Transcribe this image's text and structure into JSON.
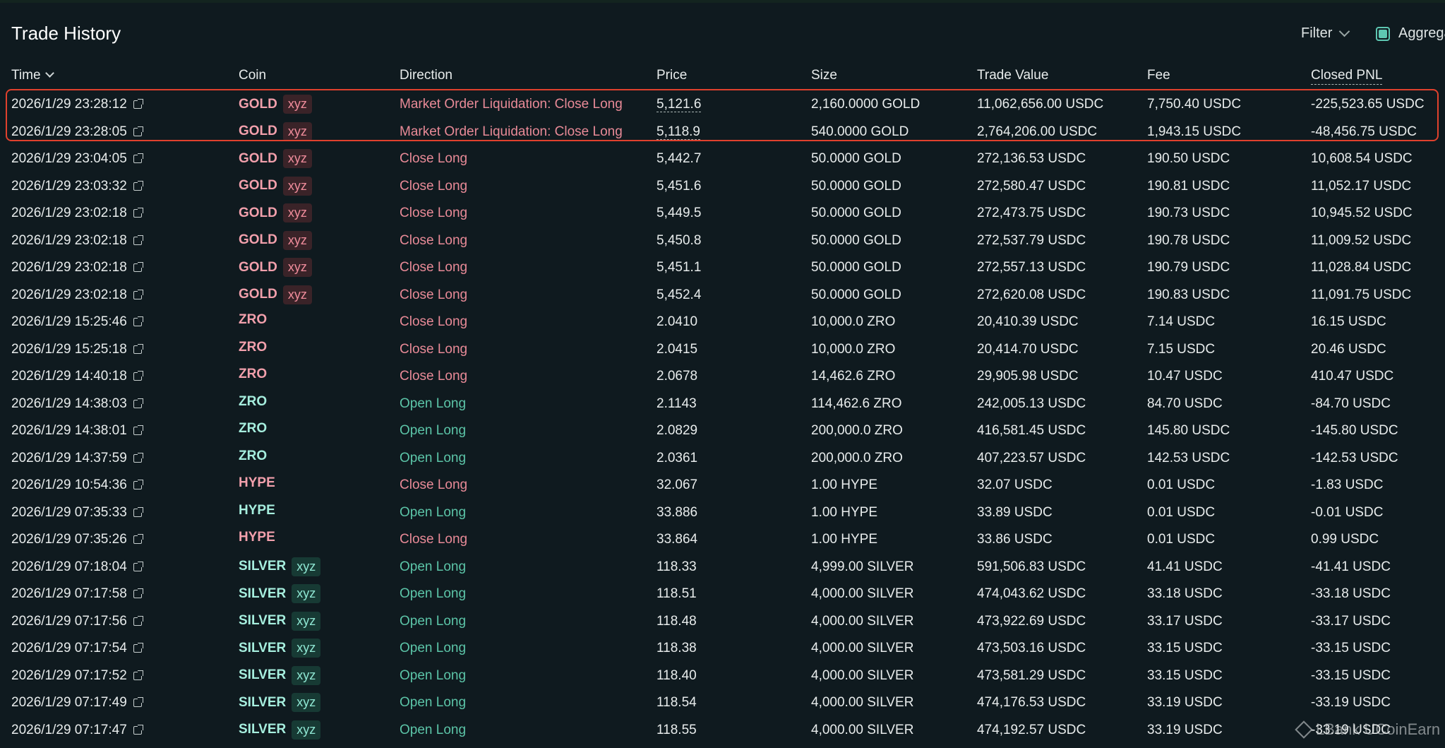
{
  "title": "Trade History",
  "filter_label": "Filter",
  "aggregate_label": "Aggregate",
  "columns": {
    "time": "Time",
    "coin": "Coin",
    "direction": "Direction",
    "price": "Price",
    "size": "Size",
    "trade_value": "Trade Value",
    "fee": "Fee",
    "closed_pnl": "Closed PNL"
  },
  "watermark": "LBank UCoinEarn",
  "colors": {
    "background": "#0f1a1f",
    "close_red": "#e88a97",
    "open_green": "#5cc5a8",
    "highlight_border": "#e0412d"
  },
  "rows": [
    {
      "time": "2026/1/29 23:28:12",
      "coin": "GOLD",
      "tag": "xyz",
      "coin_color": "red",
      "direction": "Market Order Liquidation: Close Long",
      "dir_color": "red",
      "price": "5,121.6",
      "size": "2,160.0000 GOLD",
      "trade_value": "11,062,656.00 USDC",
      "fee": "7,750.40 USDC",
      "closed_pnl": "-225,523.65 USDC"
    },
    {
      "time": "2026/1/29 23:28:05",
      "coin": "GOLD",
      "tag": "xyz",
      "coin_color": "red",
      "direction": "Market Order Liquidation: Close Long",
      "dir_color": "red",
      "price": "5,118.9",
      "size": "540.0000 GOLD",
      "trade_value": "2,764,206.00 USDC",
      "fee": "1,943.15 USDC",
      "closed_pnl": "-48,456.75 USDC"
    },
    {
      "time": "2026/1/29 23:04:05",
      "coin": "GOLD",
      "tag": "xyz",
      "coin_color": "red",
      "direction": "Close Long",
      "dir_color": "red",
      "price": "5,442.7",
      "size": "50.0000 GOLD",
      "trade_value": "272,136.53 USDC",
      "fee": "190.50 USDC",
      "closed_pnl": "10,608.54 USDC"
    },
    {
      "time": "2026/1/29 23:03:32",
      "coin": "GOLD",
      "tag": "xyz",
      "coin_color": "red",
      "direction": "Close Long",
      "dir_color": "red",
      "price": "5,451.6",
      "size": "50.0000 GOLD",
      "trade_value": "272,580.47 USDC",
      "fee": "190.81 USDC",
      "closed_pnl": "11,052.17 USDC"
    },
    {
      "time": "2026/1/29 23:02:18",
      "coin": "GOLD",
      "tag": "xyz",
      "coin_color": "red",
      "direction": "Close Long",
      "dir_color": "red",
      "price": "5,449.5",
      "size": "50.0000 GOLD",
      "trade_value": "272,473.75 USDC",
      "fee": "190.73 USDC",
      "closed_pnl": "10,945.52 USDC"
    },
    {
      "time": "2026/1/29 23:02:18",
      "coin": "GOLD",
      "tag": "xyz",
      "coin_color": "red",
      "direction": "Close Long",
      "dir_color": "red",
      "price": "5,450.8",
      "size": "50.0000 GOLD",
      "trade_value": "272,537.79 USDC",
      "fee": "190.78 USDC",
      "closed_pnl": "11,009.52 USDC"
    },
    {
      "time": "2026/1/29 23:02:18",
      "coin": "GOLD",
      "tag": "xyz",
      "coin_color": "red",
      "direction": "Close Long",
      "dir_color": "red",
      "price": "5,451.1",
      "size": "50.0000 GOLD",
      "trade_value": "272,557.13 USDC",
      "fee": "190.79 USDC",
      "closed_pnl": "11,028.84 USDC"
    },
    {
      "time": "2026/1/29 23:02:18",
      "coin": "GOLD",
      "tag": "xyz",
      "coin_color": "red",
      "direction": "Close Long",
      "dir_color": "red",
      "price": "5,452.4",
      "size": "50.0000 GOLD",
      "trade_value": "272,620.08 USDC",
      "fee": "190.83 USDC",
      "closed_pnl": "11,091.75 USDC"
    },
    {
      "time": "2026/1/29 15:25:46",
      "coin": "ZRO",
      "tag": "",
      "coin_color": "red",
      "direction": "Close Long",
      "dir_color": "red",
      "price": "2.0410",
      "size": "10,000.0 ZRO",
      "trade_value": "20,410.39 USDC",
      "fee": "7.14 USDC",
      "closed_pnl": "16.15 USDC"
    },
    {
      "time": "2026/1/29 15:25:18",
      "coin": "ZRO",
      "tag": "",
      "coin_color": "red",
      "direction": "Close Long",
      "dir_color": "red",
      "price": "2.0415",
      "size": "10,000.0 ZRO",
      "trade_value": "20,414.70 USDC",
      "fee": "7.15 USDC",
      "closed_pnl": "20.46 USDC"
    },
    {
      "time": "2026/1/29 14:40:18",
      "coin": "ZRO",
      "tag": "",
      "coin_color": "red",
      "direction": "Close Long",
      "dir_color": "red",
      "price": "2.0678",
      "size": "14,462.6 ZRO",
      "trade_value": "29,905.98 USDC",
      "fee": "10.47 USDC",
      "closed_pnl": "410.47 USDC"
    },
    {
      "time": "2026/1/29 14:38:03",
      "coin": "ZRO",
      "tag": "",
      "coin_color": "green",
      "direction": "Open Long",
      "dir_color": "green",
      "price": "2.1143",
      "size": "114,462.6 ZRO",
      "trade_value": "242,005.13 USDC",
      "fee": "84.70 USDC",
      "closed_pnl": "-84.70 USDC"
    },
    {
      "time": "2026/1/29 14:38:01",
      "coin": "ZRO",
      "tag": "",
      "coin_color": "green",
      "direction": "Open Long",
      "dir_color": "green",
      "price": "2.0829",
      "size": "200,000.0 ZRO",
      "trade_value": "416,581.45 USDC",
      "fee": "145.80 USDC",
      "closed_pnl": "-145.80 USDC"
    },
    {
      "time": "2026/1/29 14:37:59",
      "coin": "ZRO",
      "tag": "",
      "coin_color": "green",
      "direction": "Open Long",
      "dir_color": "green",
      "price": "2.0361",
      "size": "200,000.0 ZRO",
      "trade_value": "407,223.57 USDC",
      "fee": "142.53 USDC",
      "closed_pnl": "-142.53 USDC"
    },
    {
      "time": "2026/1/29 10:54:36",
      "coin": "HYPE",
      "tag": "",
      "coin_color": "red",
      "direction": "Close Long",
      "dir_color": "red",
      "price": "32.067",
      "size": "1.00 HYPE",
      "trade_value": "32.07 USDC",
      "fee": "0.01 USDC",
      "closed_pnl": "-1.83 USDC"
    },
    {
      "time": "2026/1/29 07:35:33",
      "coin": "HYPE",
      "tag": "",
      "coin_color": "green",
      "direction": "Open Long",
      "dir_color": "green",
      "price": "33.886",
      "size": "1.00 HYPE",
      "trade_value": "33.89 USDC",
      "fee": "0.01 USDC",
      "closed_pnl": "-0.01 USDC"
    },
    {
      "time": "2026/1/29 07:35:26",
      "coin": "HYPE",
      "tag": "",
      "coin_color": "red",
      "direction": "Close Long",
      "dir_color": "red",
      "price": "33.864",
      "size": "1.00 HYPE",
      "trade_value": "33.86 USDC",
      "fee": "0.01 USDC",
      "closed_pnl": "0.99 USDC"
    },
    {
      "time": "2026/1/29 07:18:04",
      "coin": "SILVER",
      "tag": "xyz",
      "coin_color": "green",
      "direction": "Open Long",
      "dir_color": "green",
      "price": "118.33",
      "size": "4,999.00 SILVER",
      "trade_value": "591,506.83 USDC",
      "fee": "41.41 USDC",
      "closed_pnl": "-41.41 USDC"
    },
    {
      "time": "2026/1/29 07:17:58",
      "coin": "SILVER",
      "tag": "xyz",
      "coin_color": "green",
      "direction": "Open Long",
      "dir_color": "green",
      "price": "118.51",
      "size": "4,000.00 SILVER",
      "trade_value": "474,043.62 USDC",
      "fee": "33.18 USDC",
      "closed_pnl": "-33.18 USDC"
    },
    {
      "time": "2026/1/29 07:17:56",
      "coin": "SILVER",
      "tag": "xyz",
      "coin_color": "green",
      "direction": "Open Long",
      "dir_color": "green",
      "price": "118.48",
      "size": "4,000.00 SILVER",
      "trade_value": "473,922.69 USDC",
      "fee": "33.17 USDC",
      "closed_pnl": "-33.17 USDC"
    },
    {
      "time": "2026/1/29 07:17:54",
      "coin": "SILVER",
      "tag": "xyz",
      "coin_color": "green",
      "direction": "Open Long",
      "dir_color": "green",
      "price": "118.38",
      "size": "4,000.00 SILVER",
      "trade_value": "473,503.16 USDC",
      "fee": "33.15 USDC",
      "closed_pnl": "-33.15 USDC"
    },
    {
      "time": "2026/1/29 07:17:52",
      "coin": "SILVER",
      "tag": "xyz",
      "coin_color": "green",
      "direction": "Open Long",
      "dir_color": "green",
      "price": "118.40",
      "size": "4,000.00 SILVER",
      "trade_value": "473,581.29 USDC",
      "fee": "33.15 USDC",
      "closed_pnl": "-33.15 USDC"
    },
    {
      "time": "2026/1/29 07:17:49",
      "coin": "SILVER",
      "tag": "xyz",
      "coin_color": "green",
      "direction": "Open Long",
      "dir_color": "green",
      "price": "118.54",
      "size": "4,000.00 SILVER",
      "trade_value": "474,176.53 USDC",
      "fee": "33.19 USDC",
      "closed_pnl": "-33.19 USDC"
    },
    {
      "time": "2026/1/29 07:17:47",
      "coin": "SILVER",
      "tag": "xyz",
      "coin_color": "green",
      "direction": "Open Long",
      "dir_color": "green",
      "price": "118.55",
      "size": "4,000.00 SILVER",
      "trade_value": "474,192.57 USDC",
      "fee": "33.19 USDC",
      "closed_pnl": "-33.19 USDC"
    }
  ]
}
